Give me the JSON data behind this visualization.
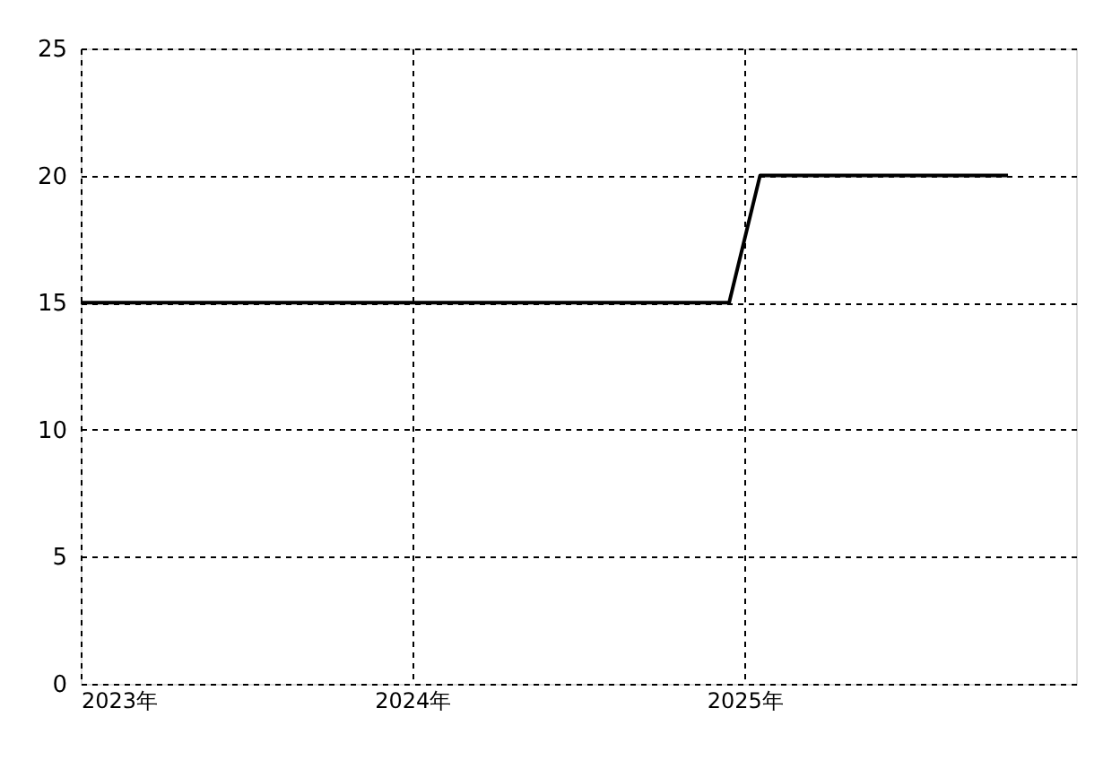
{
  "chart_data": {
    "type": "line",
    "x": [
      "2023-01-01",
      "2024-12-15",
      "2025-01-18",
      "2025-10-18"
    ],
    "series": [
      {
        "color": "#000000",
        "values": [
          15,
          15,
          20,
          20
        ]
      }
    ],
    "xlim": [
      "2023-01-01",
      "2026-01-01"
    ],
    "xticks": [
      {
        "value": "2023-01-01",
        "label": "2023年"
      },
      {
        "value": "2024-01-01",
        "label": "2024年"
      },
      {
        "value": "2025-01-01",
        "label": "2025年"
      }
    ],
    "ylim": [
      0,
      25
    ],
    "yticks": [
      0,
      5,
      10,
      15,
      20,
      25
    ],
    "grid": true,
    "line_style": "solid",
    "marker": "none"
  }
}
